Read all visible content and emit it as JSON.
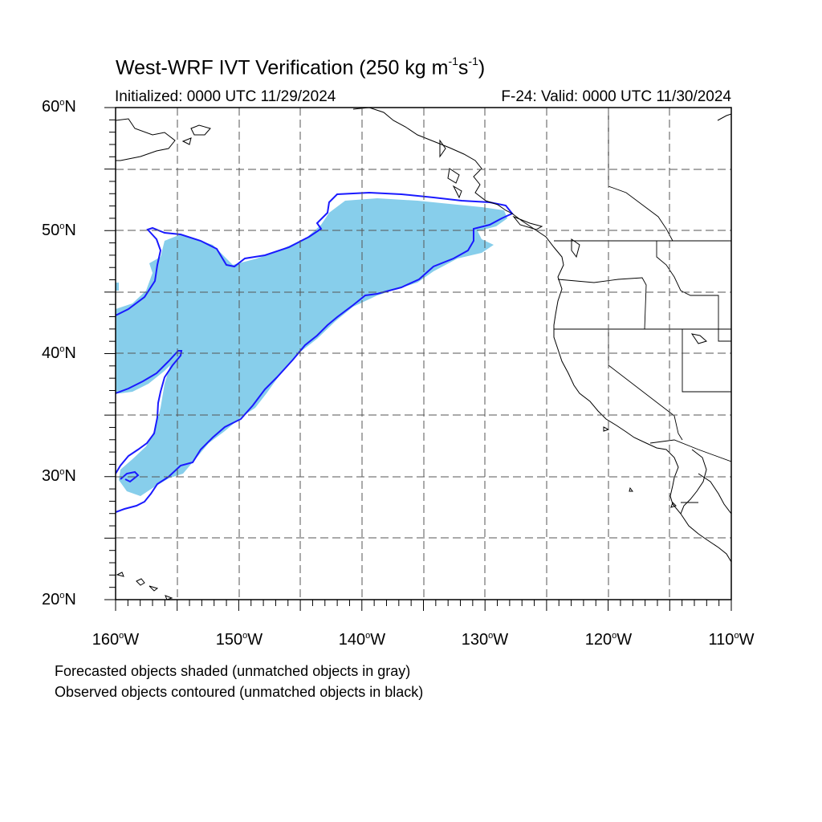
{
  "title": {
    "main": "West-WRF IVT Verification (250 kg m",
    "exp1": "-1",
    "mid": "s",
    "exp2": "-1",
    "end": ")"
  },
  "initialized": "Initialized: 0000 UTC 11/29/2024",
  "valid": "F-24: Valid: 0000 UTC 11/30/2024",
  "lat_labels": [
    {
      "num": "60",
      "suffix": "N"
    },
    {
      "num": "50",
      "suffix": "N"
    },
    {
      "num": "40",
      "suffix": "N"
    },
    {
      "num": "30",
      "suffix": "N"
    },
    {
      "num": "20",
      "suffix": "N"
    }
  ],
  "lon_labels": [
    {
      "num": "160",
      "suffix": "W"
    },
    {
      "num": "150",
      "suffix": "W"
    },
    {
      "num": "140",
      "suffix": "W"
    },
    {
      "num": "130",
      "suffix": "W"
    },
    {
      "num": "120",
      "suffix": "W"
    },
    {
      "num": "110",
      "suffix": "W"
    }
  ],
  "degree_symbol": "o",
  "notes": [
    "Forecasted objects shaded (unmatched objects in gray)",
    "Observed objects contoured (unmatched objects in black)"
  ],
  "map": {
    "extent": {
      "lon_min": -160,
      "lon_max": -110,
      "lat_min": 20,
      "lat_max": 60
    },
    "gridlines": "dashed every 5 degrees",
    "forecast_fill_color": "#87ceeb",
    "observed_contour_color": "#0000ff",
    "coastline_color": "#000000"
  }
}
